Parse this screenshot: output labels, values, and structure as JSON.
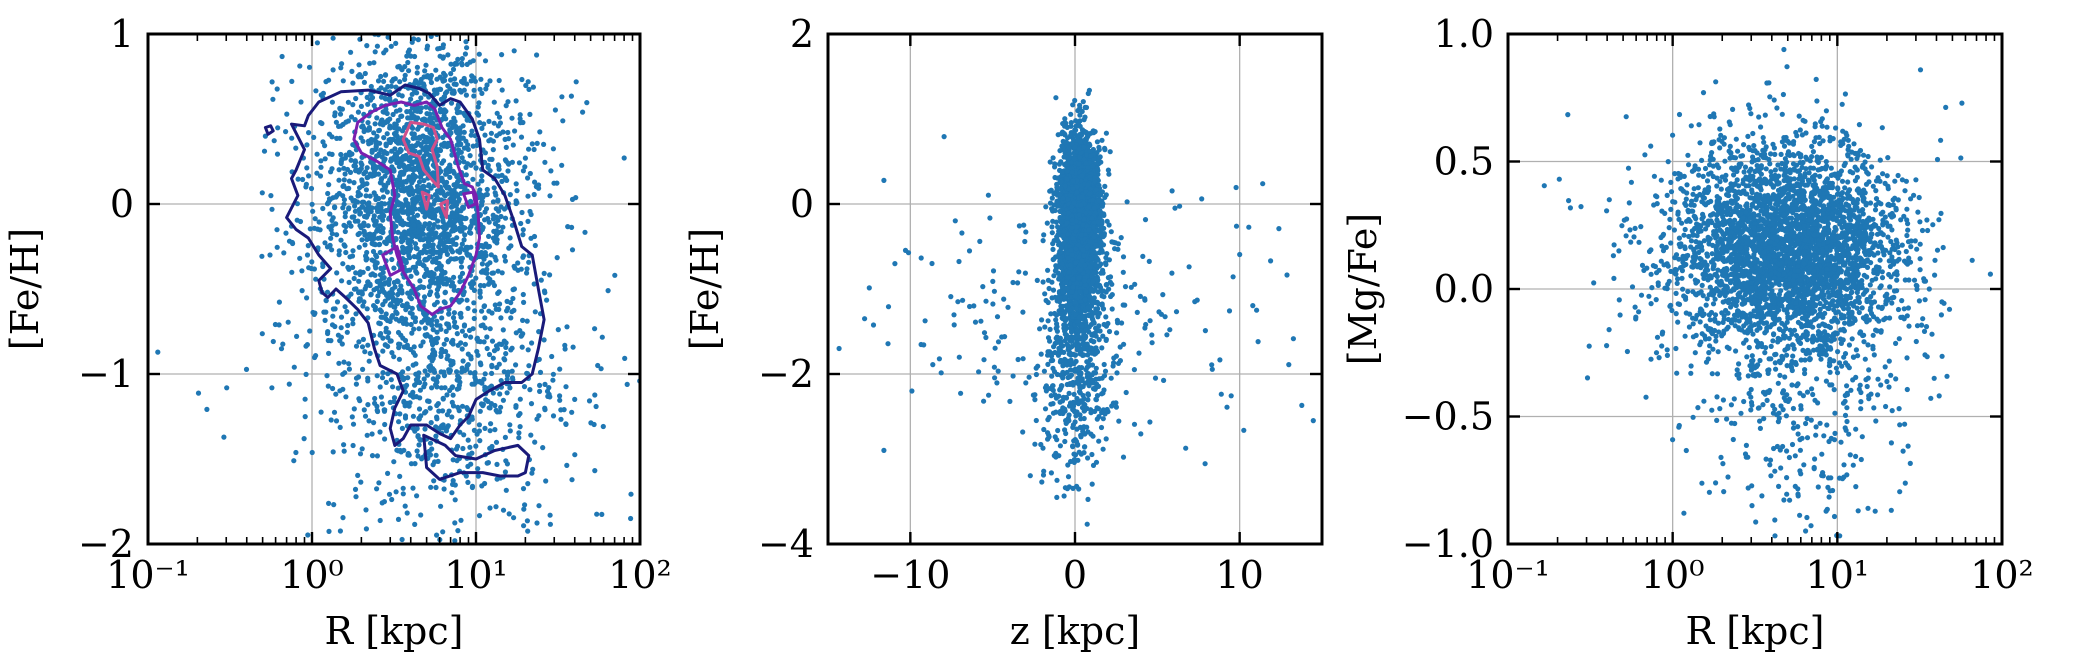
{
  "chart_data": [
    {
      "type": "scatter",
      "panel": "left",
      "xlabel": "R [kpc]",
      "ylabel": "[Fe/H]",
      "xscale": "log",
      "xlim": [
        0.1,
        100
      ],
      "ylim": [
        -2,
        1
      ],
      "xticks": [
        0.1,
        1,
        10,
        100
      ],
      "xtick_labels": [
        "10⁻¹",
        "10⁰",
        "10¹",
        "10²"
      ],
      "yticks": [
        -2,
        -1,
        0,
        1
      ],
      "ytick_labels": [
        "−2",
        "−1",
        "0",
        "1"
      ],
      "grid": true,
      "point_color": "#1f77b4",
      "cloud": [
        {
          "cx": 4.5,
          "cy": 0.1,
          "sx": 0.28,
          "sy": 0.42,
          "n": 1900
        },
        {
          "cx": 6.0,
          "cy": -0.95,
          "sx": 0.33,
          "sy": 0.5,
          "n": 650
        },
        {
          "cx": 4.0,
          "cy": -0.3,
          "sx": 0.55,
          "sy": 0.65,
          "n": 320
        },
        {
          "cx": 12.0,
          "cy": -1.3,
          "sx": 0.5,
          "sy": 0.45,
          "n": 160
        }
      ],
      "contours": [
        {
          "color": "#1a1a7a",
          "points": [
            [
              0.75,
              0.47
            ],
            [
              0.9,
              0.46
            ],
            [
              0.95,
              0.52
            ],
            [
              1.1,
              0.6
            ],
            [
              1.5,
              0.66
            ],
            [
              2.2,
              0.67
            ],
            [
              3.0,
              0.64
            ],
            [
              3.7,
              0.7
            ],
            [
              4.5,
              0.68
            ],
            [
              5.2,
              0.65
            ],
            [
              6.0,
              0.58
            ],
            [
              7.0,
              0.62
            ],
            [
              8.0,
              0.6
            ],
            [
              9.5,
              0.5
            ],
            [
              10.5,
              0.38
            ],
            [
              11,
              0.2
            ],
            [
              13,
              0.15
            ],
            [
              15,
              0.05
            ],
            [
              17,
              -0.1
            ],
            [
              19,
              -0.25
            ],
            [
              22,
              -0.3
            ],
            [
              24,
              -0.5
            ],
            [
              26,
              -0.68
            ],
            [
              24,
              -0.85
            ],
            [
              22,
              -1.0
            ],
            [
              19,
              -1.05
            ],
            [
              15,
              -1.05
            ],
            [
              12,
              -1.1
            ],
            [
              10,
              -1.15
            ],
            [
              9,
              -1.25
            ],
            [
              8,
              -1.3
            ],
            [
              7,
              -1.38
            ],
            [
              6,
              -1.35
            ],
            [
              5,
              -1.3
            ],
            [
              4,
              -1.3
            ],
            [
              3.6,
              -1.38
            ],
            [
              3.2,
              -1.42
            ],
            [
              3.0,
              -1.32
            ],
            [
              3.2,
              -1.2
            ],
            [
              3.6,
              -1.1
            ],
            [
              3.3,
              -1.0
            ],
            [
              2.6,
              -0.95
            ],
            [
              2.4,
              -0.85
            ],
            [
              2.2,
              -0.7
            ],
            [
              1.9,
              -0.62
            ],
            [
              1.6,
              -0.55
            ],
            [
              1.4,
              -0.5
            ],
            [
              1.25,
              -0.55
            ],
            [
              1.15,
              -0.52
            ],
            [
              1.1,
              -0.45
            ],
            [
              1.3,
              -0.38
            ],
            [
              1.1,
              -0.3
            ],
            [
              0.95,
              -0.2
            ],
            [
              0.8,
              -0.15
            ],
            [
              0.7,
              -0.08
            ],
            [
              0.82,
              0.05
            ],
            [
              0.75,
              0.15
            ],
            [
              0.8,
              0.2
            ],
            [
              0.9,
              0.32
            ],
            [
              0.75,
              0.47
            ]
          ]
        },
        {
          "color": "#1a1a7a",
          "points": [
            [
              4.8,
              -1.36
            ],
            [
              6.5,
              -1.42
            ],
            [
              7.5,
              -1.48
            ],
            [
              10,
              -1.5
            ],
            [
              13,
              -1.45
            ],
            [
              18,
              -1.42
            ],
            [
              21,
              -1.48
            ],
            [
              20,
              -1.58
            ],
            [
              18,
              -1.6
            ],
            [
              14,
              -1.6
            ],
            [
              11,
              -1.58
            ],
            [
              8,
              -1.58
            ],
            [
              6,
              -1.62
            ],
            [
              5,
              -1.55
            ],
            [
              4.8,
              -1.36
            ]
          ]
        },
        {
          "color": "#1a1a7a",
          "points": [
            [
              0.52,
              0.45
            ],
            [
              0.56,
              0.46
            ],
            [
              0.58,
              0.43
            ],
            [
              0.54,
              0.41
            ],
            [
              0.52,
              0.45
            ]
          ]
        },
        {
          "color": "#7a1fb0",
          "points": [
            [
              1.9,
              0.48
            ],
            [
              2.3,
              0.54
            ],
            [
              2.8,
              0.58
            ],
            [
              3.5,
              0.6
            ],
            [
              4.2,
              0.58
            ],
            [
              5,
              0.6
            ],
            [
              5.6,
              0.56
            ],
            [
              6.2,
              0.45
            ],
            [
              7,
              0.38
            ],
            [
              7.8,
              0.22
            ],
            [
              8.5,
              0.12
            ],
            [
              9.5,
              0.1
            ],
            [
              10,
              0.05
            ],
            [
              10.3,
              -0.05
            ],
            [
              10.5,
              -0.2
            ],
            [
              10,
              -0.3
            ],
            [
              9,
              -0.42
            ],
            [
              8,
              -0.52
            ],
            [
              7,
              -0.6
            ],
            [
              6,
              -0.62
            ],
            [
              5.4,
              -0.65
            ],
            [
              4.6,
              -0.6
            ],
            [
              4.2,
              -0.5
            ],
            [
              3.6,
              -0.4
            ],
            [
              3.3,
              -0.3
            ],
            [
              3.1,
              -0.2
            ],
            [
              3.0,
              -0.05
            ],
            [
              3.2,
              0.05
            ],
            [
              3.0,
              0.2
            ],
            [
              2.5,
              0.25
            ],
            [
              2.0,
              0.3
            ],
            [
              1.8,
              0.38
            ],
            [
              1.9,
              0.48
            ]
          ]
        },
        {
          "color": "#7a1fb0",
          "points": [
            [
              2.7,
              -0.3
            ],
            [
              3.3,
              -0.25
            ],
            [
              3.6,
              -0.38
            ],
            [
              3.0,
              -0.42
            ],
            [
              2.7,
              -0.3
            ]
          ]
        },
        {
          "color": "#7a1fb0",
          "points": [
            [
              8.4,
              0.06
            ],
            [
              9.6,
              0.07
            ],
            [
              9.9,
              0.0
            ],
            [
              9.0,
              -0.02
            ],
            [
              8.4,
              0.06
            ]
          ]
        },
        {
          "color": "#d0508a",
          "points": [
            [
              3.6,
              0.38
            ],
            [
              4.0,
              0.48
            ],
            [
              4.8,
              0.47
            ],
            [
              5.5,
              0.45
            ],
            [
              5.8,
              0.38
            ],
            [
              5.4,
              0.32
            ],
            [
              5.8,
              0.22
            ],
            [
              5.9,
              0.1
            ],
            [
              5.3,
              0.15
            ],
            [
              4.8,
              0.2
            ],
            [
              4.5,
              0.28
            ],
            [
              3.9,
              0.3
            ],
            [
              3.6,
              0.38
            ]
          ]
        },
        {
          "color": "#d0508a",
          "points": [
            [
              4.7,
              0.07
            ],
            [
              5.2,
              0.05
            ],
            [
              5.0,
              -0.03
            ],
            [
              4.7,
              0.07
            ]
          ]
        },
        {
          "color": "#d0508a",
          "points": [
            [
              6.1,
              0.0
            ],
            [
              6.7,
              0.02
            ],
            [
              6.6,
              -0.08
            ],
            [
              6.1,
              0.0
            ]
          ]
        }
      ]
    },
    {
      "type": "scatter",
      "panel": "middle",
      "xlabel": "z [kpc]",
      "ylabel": "[Fe/H]",
      "xscale": "linear",
      "xlim": [
        -15,
        15
      ],
      "ylim": [
        -4,
        2
      ],
      "xticks": [
        -10,
        0,
        10
      ],
      "xtick_labels": [
        "−10",
        "0",
        "10"
      ],
      "yticks": [
        -4,
        -2,
        0,
        2
      ],
      "ytick_labels": [
        "−4",
        "−2",
        "0",
        "2"
      ],
      "grid": true,
      "point_color": "#1f77b4",
      "cloud": [
        {
          "cx": 0.3,
          "cy": -0.1,
          "sx": 0.6,
          "sy": 0.45,
          "n": 2300
        },
        {
          "cx": 0.2,
          "cy": -1.0,
          "sx": 0.9,
          "sy": 0.6,
          "n": 700
        },
        {
          "cx": 0.0,
          "cy": -2.3,
          "sx": 1.2,
          "sy": 0.55,
          "n": 260
        },
        {
          "cx": 0.0,
          "cy": -1.3,
          "sx": 6.5,
          "sy": 0.75,
          "n": 200
        }
      ]
    },
    {
      "type": "scatter",
      "panel": "right",
      "xlabel": "R [kpc]",
      "ylabel": "[Mg/Fe]",
      "xscale": "log",
      "xlim": [
        0.1,
        100
      ],
      "ylim": [
        -1.0,
        1.0
      ],
      "xticks": [
        0.1,
        1,
        10,
        100
      ],
      "xtick_labels": [
        "10⁻¹",
        "10⁰",
        "10¹",
        "10²"
      ],
      "yticks": [
        -1.0,
        -0.5,
        0.0,
        0.5,
        1.0
      ],
      "ytick_labels": [
        "−1.0",
        "−0.5",
        "0.0",
        "0.5",
        "1.0"
      ],
      "grid": true,
      "point_color": "#1f77b4",
      "cloud": [
        {
          "cx": 5.0,
          "cy": 0.15,
          "sx": 0.33,
          "sy": 0.2,
          "n": 3300
        },
        {
          "cx": 7.0,
          "cy": -0.45,
          "sx": 0.3,
          "sy": 0.28,
          "n": 300
        },
        {
          "cx": 4.0,
          "cy": 0.15,
          "sx": 0.6,
          "sy": 0.3,
          "n": 250
        }
      ]
    }
  ]
}
